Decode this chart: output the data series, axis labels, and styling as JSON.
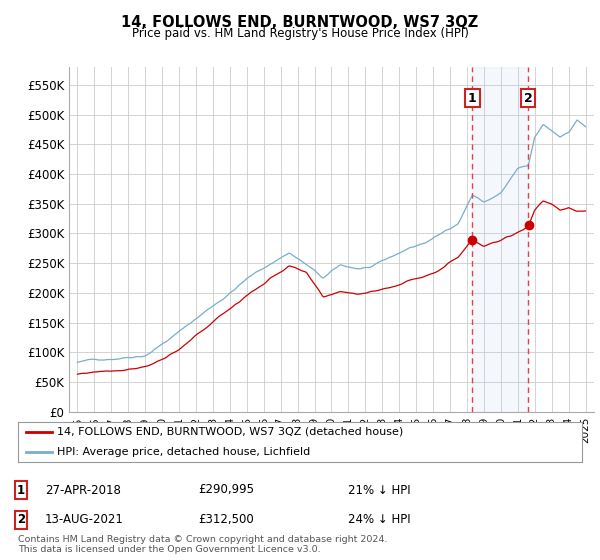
{
  "title": "14, FOLLOWS END, BURNTWOOD, WS7 3QZ",
  "subtitle": "Price paid vs. HM Land Registry's House Price Index (HPI)",
  "ylabel_ticks": [
    "£0",
    "£50K",
    "£100K",
    "£150K",
    "£200K",
    "£250K",
    "£300K",
    "£350K",
    "£400K",
    "£450K",
    "£500K",
    "£550K"
  ],
  "ytick_values": [
    0,
    50000,
    100000,
    150000,
    200000,
    250000,
    300000,
    350000,
    400000,
    450000,
    500000,
    550000
  ],
  "ylim": [
    0,
    580000
  ],
  "legend_line1": "14, FOLLOWS END, BURNTWOOD, WS7 3QZ (detached house)",
  "legend_line2": "HPI: Average price, detached house, Lichfield",
  "sale1_date": "27-APR-2018",
  "sale1_price": "£290,995",
  "sale1_pct": "21% ↓ HPI",
  "sale2_date": "13-AUG-2021",
  "sale2_price": "£312,500",
  "sale2_pct": "24% ↓ HPI",
  "footer": "Contains HM Land Registry data © Crown copyright and database right 2024.\nThis data is licensed under the Open Government Licence v3.0.",
  "red_color": "#cc0000",
  "blue_color": "#7aadcc",
  "sale1_x": 2018.32,
  "sale2_x": 2021.62,
  "sale1_y_red": 290995,
  "sale2_y_red": 312500,
  "background_color": "#ffffff",
  "grid_color": "#cccccc",
  "xlim_left": 1994.5,
  "xlim_right": 2025.5
}
